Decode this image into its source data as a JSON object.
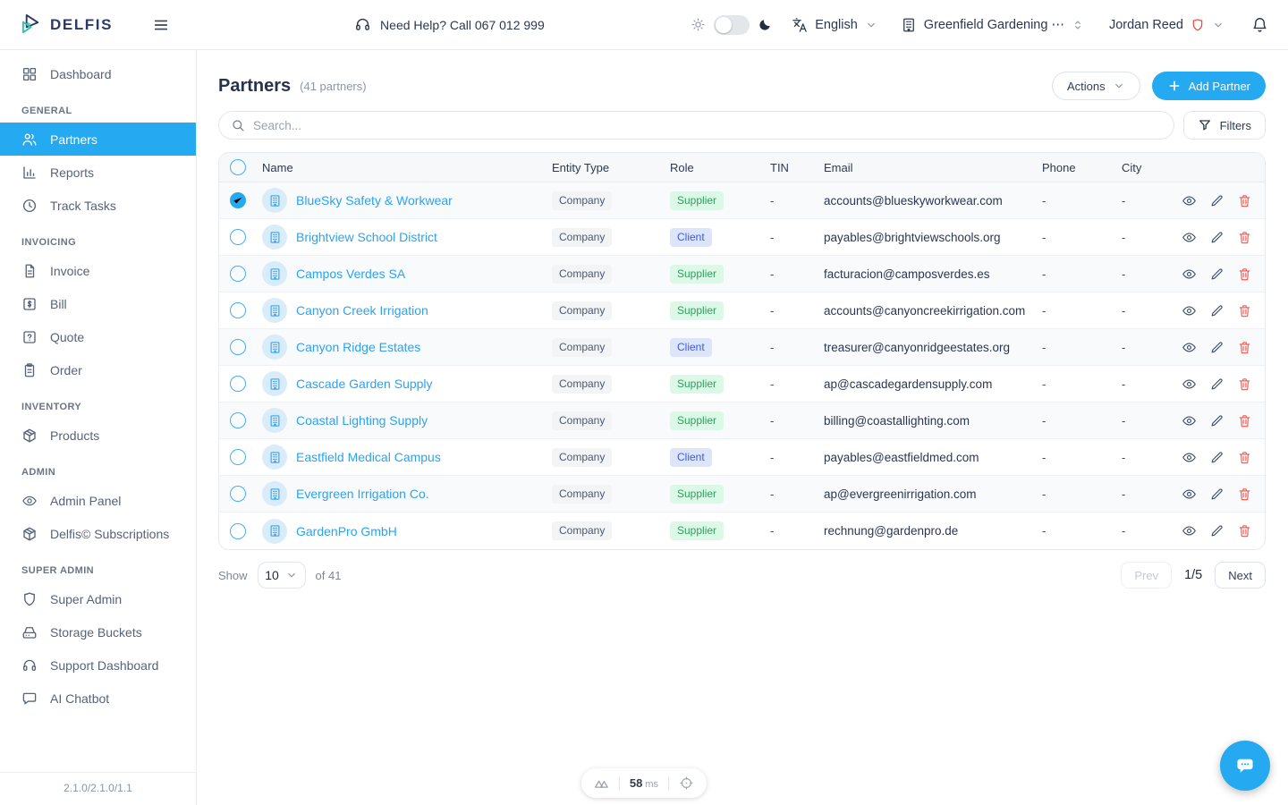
{
  "header": {
    "logo_text": "DELFIS",
    "menu_icon": "menu-icon",
    "help_icon": "headset-icon",
    "help_text": "Need Help? Call 067 012 999",
    "theme": {
      "sun_icon": "sun-icon",
      "moon_icon": "moon-icon",
      "state": "light"
    },
    "language": "English",
    "language_icon": "language-icon",
    "company": "Greenfield Gardening ⋯",
    "company_icon": "building-icon",
    "user": "Jordan Reed",
    "user_badge_icon": "shield-icon",
    "bell_icon": "bell-icon"
  },
  "sidebar": {
    "groups": [
      {
        "label": "",
        "items": [
          {
            "label": "Dashboard",
            "icon": "dashboard-icon",
            "active": false
          }
        ]
      },
      {
        "label": "GENERAL",
        "items": [
          {
            "label": "Partners",
            "icon": "users-icon",
            "active": true
          },
          {
            "label": "Reports",
            "icon": "bar-chart-icon",
            "active": false
          },
          {
            "label": "Track Tasks",
            "icon": "clock-icon",
            "active": false
          }
        ]
      },
      {
        "label": "INVOICING",
        "items": [
          {
            "label": "Invoice",
            "icon": "file-icon",
            "active": false
          },
          {
            "label": "Bill",
            "icon": "dollar-square-icon",
            "active": false
          },
          {
            "label": "Quote",
            "icon": "help-square-icon",
            "active": false
          },
          {
            "label": "Order",
            "icon": "clipboard-icon",
            "active": false
          }
        ]
      },
      {
        "label": "INVENTORY",
        "items": [
          {
            "label": "Products",
            "icon": "package-icon",
            "active": false
          }
        ]
      },
      {
        "label": "ADMIN",
        "items": [
          {
            "label": "Admin Panel",
            "icon": "eye-icon",
            "active": false
          },
          {
            "label": "Delfis© Subscriptions",
            "icon": "package-icon",
            "active": false
          }
        ]
      },
      {
        "label": "SUPER ADMIN",
        "items": [
          {
            "label": "Super Admin",
            "icon": "shield-icon",
            "active": false
          },
          {
            "label": "Storage Buckets",
            "icon": "hard-drive-icon",
            "active": false
          },
          {
            "label": "Support Dashboard",
            "icon": "headset-icon",
            "active": false
          },
          {
            "label": "AI Chatbot",
            "icon": "chat-icon",
            "active": false
          }
        ]
      }
    ],
    "version": "2.1.0/2.1.0/1.1"
  },
  "main": {
    "title": "Partners",
    "subtitle": "(41 partners)",
    "actions_label": "Actions",
    "add_partner_label": "Add Partner",
    "search_placeholder": "Search...",
    "filters_label": "Filters",
    "table": {
      "columns": [
        "Name",
        "Entity Type",
        "Role",
        "TIN",
        "Email",
        "Phone",
        "City"
      ],
      "rows": [
        {
          "checked": true,
          "name": "BlueSky Safety & Workwear",
          "entity_type": "Company",
          "role": "Supplier",
          "tin": "-",
          "email": "accounts@blueskyworkwear.com",
          "phone": "-",
          "city": "-"
        },
        {
          "checked": false,
          "name": "Brightview School District",
          "entity_type": "Company",
          "role": "Client",
          "tin": "-",
          "email": "payables@brightviewschools.org",
          "phone": "-",
          "city": "-"
        },
        {
          "checked": false,
          "name": "Campos Verdes SA",
          "entity_type": "Company",
          "role": "Supplier",
          "tin": "-",
          "email": "facturacion@camposverdes.es",
          "phone": "-",
          "city": "-"
        },
        {
          "checked": false,
          "name": "Canyon Creek Irrigation",
          "entity_type": "Company",
          "role": "Supplier",
          "tin": "-",
          "email": "accounts@canyoncreekirrigation.com",
          "phone": "-",
          "city": "-"
        },
        {
          "checked": false,
          "name": "Canyon Ridge Estates",
          "entity_type": "Company",
          "role": "Client",
          "tin": "-",
          "email": "treasurer@canyonridgeestates.org",
          "phone": "-",
          "city": "-"
        },
        {
          "checked": false,
          "name": "Cascade Garden Supply",
          "entity_type": "Company",
          "role": "Supplier",
          "tin": "-",
          "email": "ap@cascadegardensupply.com",
          "phone": "-",
          "city": "-"
        },
        {
          "checked": false,
          "name": "Coastal Lighting Supply",
          "entity_type": "Company",
          "role": "Supplier",
          "tin": "-",
          "email": "billing@coastallighting.com",
          "phone": "-",
          "city": "-"
        },
        {
          "checked": false,
          "name": "Eastfield Medical Campus",
          "entity_type": "Company",
          "role": "Client",
          "tin": "-",
          "email": "payables@eastfieldmed.com",
          "phone": "-",
          "city": "-"
        },
        {
          "checked": false,
          "name": "Evergreen Irrigation Co.",
          "entity_type": "Company",
          "role": "Supplier",
          "tin": "-",
          "email": "ap@evergreenirrigation.com",
          "phone": "-",
          "city": "-"
        },
        {
          "checked": false,
          "name": "GardenPro GmbH",
          "entity_type": "Company",
          "role": "Supplier",
          "tin": "-",
          "email": "rechnung@gardenpro.de",
          "phone": "-",
          "city": "-"
        }
      ]
    },
    "pagination": {
      "show_label": "Show",
      "page_size": "10",
      "total_label": "of 41",
      "prev_label": "Prev",
      "page_indicator": "1/5",
      "next_label": "Next"
    }
  },
  "footer": {
    "latency_value": "58",
    "latency_unit": "ms",
    "left_icon": "mountains-icon",
    "right_icon": "crosshair-icon",
    "chat_icon": "chat-bubble-dots-icon"
  },
  "colors": {
    "accent": "#25a9f0",
    "danger": "#f0564d",
    "supplier_bg": "#dcf8e6",
    "supplier_text": "#2f9e5f",
    "client_bg": "#dde5fb",
    "client_text": "#3e5bd8"
  }
}
